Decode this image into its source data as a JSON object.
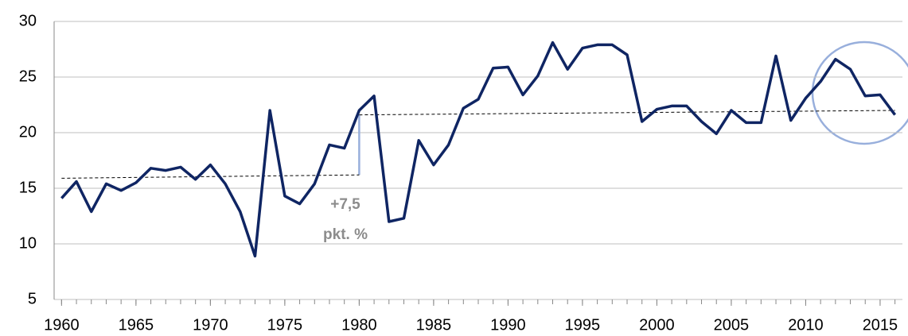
{
  "chart_data": {
    "type": "line",
    "x": [
      1960,
      1961,
      1962,
      1963,
      1964,
      1965,
      1966,
      1967,
      1968,
      1969,
      1970,
      1971,
      1972,
      1973,
      1974,
      1975,
      1976,
      1977,
      1978,
      1979,
      1980,
      1981,
      1982,
      1983,
      1984,
      1985,
      1986,
      1987,
      1988,
      1989,
      1990,
      1991,
      1992,
      1993,
      1994,
      1995,
      1996,
      1997,
      1998,
      1999,
      2000,
      2001,
      2002,
      2003,
      2004,
      2005,
      2006,
      2007,
      2008,
      2009,
      2010,
      2011,
      2012,
      2013,
      2014,
      2015,
      2016
    ],
    "series": [
      {
        "color": "#0f2563",
        "values": [
          14.1,
          15.6,
          12.9,
          15.4,
          14.8,
          15.5,
          16.8,
          16.6,
          16.9,
          15.8,
          17.1,
          15.4,
          12.9,
          8.9,
          22.0,
          14.3,
          13.6,
          15.4,
          18.9,
          18.6,
          22.0,
          23.3,
          12.0,
          12.3,
          19.3,
          17.1,
          18.9,
          22.2,
          23.0,
          25.8,
          25.9,
          23.4,
          25.1,
          28.1,
          25.7,
          27.6,
          27.9,
          27.9,
          27.0,
          21.0,
          22.1,
          22.4,
          22.4,
          21.0,
          19.9,
          22.0,
          20.9,
          20.9,
          26.9,
          21.1,
          23.1,
          24.6,
          26.6,
          25.7,
          23.3,
          23.4,
          21.6
        ]
      }
    ],
    "trend_lines": [
      {
        "x": [
          1960,
          1980
        ],
        "values": [
          15.9,
          16.2
        ]
      },
      {
        "x": [
          1980,
          2016
        ],
        "values": [
          21.6,
          22.0
        ]
      }
    ],
    "annotation": [
      "+7,5",
      "pkt. %"
    ],
    "xlim": [
      1959.5,
      2016.5
    ],
    "xticks": [
      1960,
      1965,
      1970,
      1975,
      1980,
      1985,
      1990,
      1995,
      2000,
      2005,
      2010,
      2015
    ],
    "ylim": [
      5,
      30
    ],
    "yticks": [
      5,
      10,
      15,
      20,
      25,
      30
    ],
    "grid": true
  }
}
